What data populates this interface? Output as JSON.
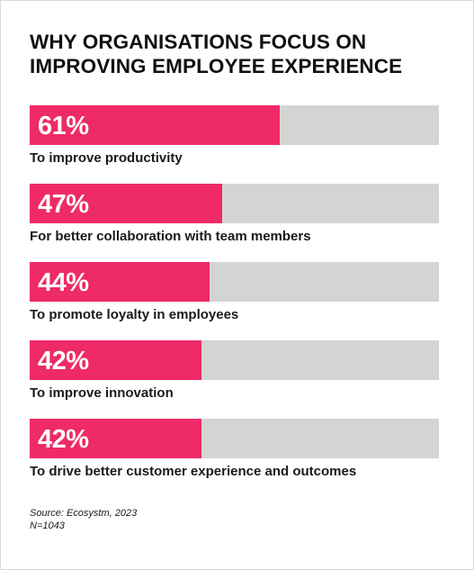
{
  "chart_data": {
    "type": "bar",
    "orientation": "horizontal",
    "title": "WHY ORGANISATIONS FOCUS ON IMPROVING EMPLOYEE EXPERIENCE",
    "value_suffix": "%",
    "xlim": [
      0,
      100
    ],
    "categories": [
      "To improve productivity",
      "For better collaboration with team members",
      "To promote loyalty in employees",
      "To improve innovation",
      "To drive better customer experience and outcomes"
    ],
    "values": [
      61,
      47,
      44,
      42,
      42
    ],
    "colors": {
      "fill": "#ee2a67",
      "track": "#d4d4d4",
      "label_text": "#ffffff"
    }
  },
  "footer": {
    "source": "Source: Ecosystm, 2023",
    "sample": "N=1043"
  }
}
